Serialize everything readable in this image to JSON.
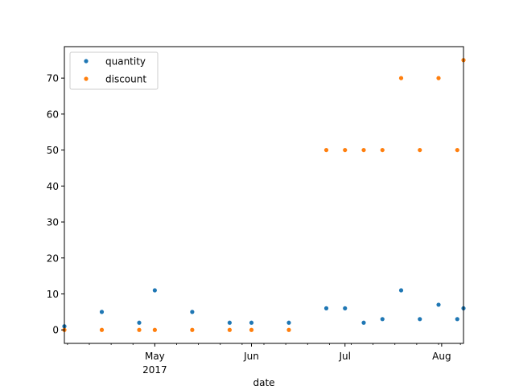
{
  "chart_data": {
    "type": "scatter",
    "xlabel": "date",
    "x_tick_labels": [
      {
        "date": "2017-05-01",
        "label": "May",
        "sublabel": "2017"
      },
      {
        "date": "2017-06-01",
        "label": "Jun",
        "sublabel": ""
      },
      {
        "date": "2017-07-01",
        "label": "Jul",
        "sublabel": ""
      },
      {
        "date": "2017-08-01",
        "label": "Aug",
        "sublabel": ""
      }
    ],
    "xlim": [
      "2017-04-02",
      "2017-08-08"
    ],
    "ylim": [
      -3.75,
      78.75
    ],
    "y_ticks": [
      0,
      10,
      20,
      30,
      40,
      50,
      60,
      70
    ],
    "legend": {
      "position": "upper-left"
    },
    "grid": false,
    "series": [
      {
        "name": "quantity",
        "color": "#1f77b4",
        "points": [
          [
            "2017-04-02",
            1
          ],
          [
            "2017-04-14",
            5
          ],
          [
            "2017-04-26",
            2
          ],
          [
            "2017-05-01",
            11
          ],
          [
            "2017-05-13",
            5
          ],
          [
            "2017-05-25",
            2
          ],
          [
            "2017-06-01",
            2
          ],
          [
            "2017-06-13",
            2
          ],
          [
            "2017-06-25",
            6
          ],
          [
            "2017-07-07",
            2
          ],
          [
            "2017-07-01",
            6
          ],
          [
            "2017-07-13",
            3
          ],
          [
            "2017-07-25",
            3
          ],
          [
            "2017-08-06",
            3
          ],
          [
            "2017-07-19",
            11
          ],
          [
            "2017-07-31",
            7
          ],
          [
            "2017-08-08",
            6
          ]
        ]
      },
      {
        "name": "discount",
        "color": "#ff7f0e",
        "points": [
          [
            "2017-04-02",
            0
          ],
          [
            "2017-04-14",
            0
          ],
          [
            "2017-04-26",
            0
          ],
          [
            "2017-05-01",
            0
          ],
          [
            "2017-05-13",
            0
          ],
          [
            "2017-05-25",
            0
          ],
          [
            "2017-06-01",
            0
          ],
          [
            "2017-06-13",
            0
          ],
          [
            "2017-06-25",
            50
          ],
          [
            "2017-07-07",
            50
          ],
          [
            "2017-07-01",
            50
          ],
          [
            "2017-07-13",
            50
          ],
          [
            "2017-07-25",
            50
          ],
          [
            "2017-08-06",
            50
          ],
          [
            "2017-07-19",
            70
          ],
          [
            "2017-07-31",
            70
          ],
          [
            "2017-08-08",
            75
          ]
        ]
      }
    ]
  }
}
